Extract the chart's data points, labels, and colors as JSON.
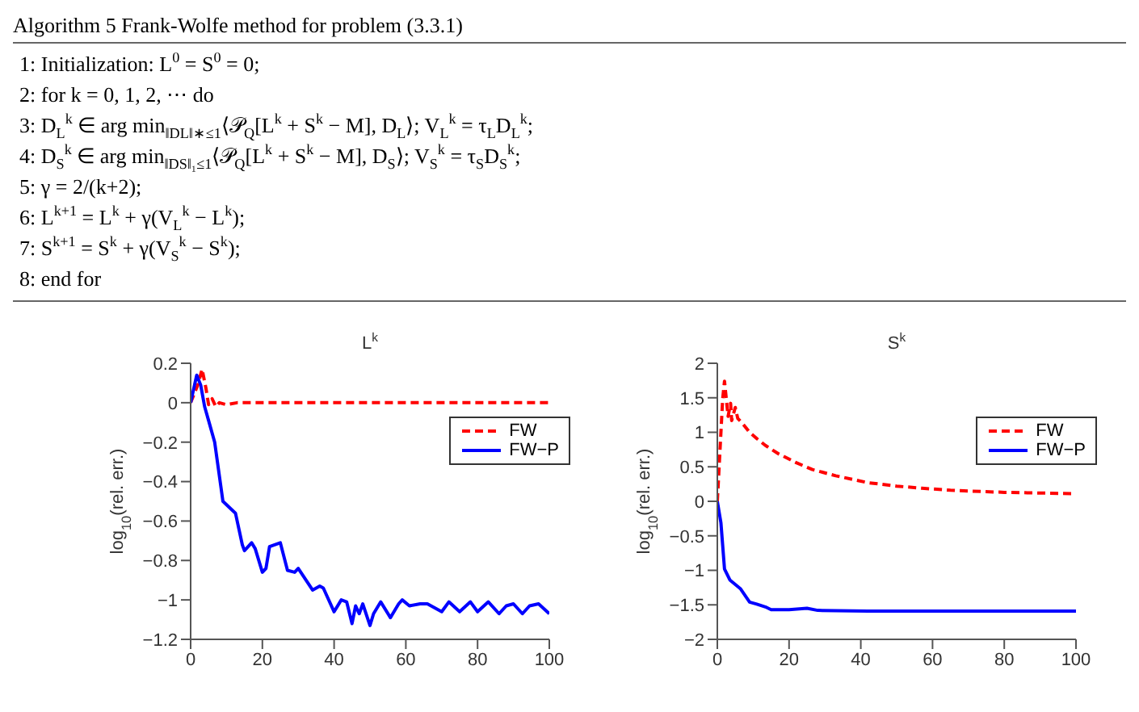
{
  "chart_data": [
    {
      "type": "line",
      "title": "L$^{k}$",
      "ylabel": "log$_{10}$(rel. err.)",
      "xlim": [
        0,
        100
      ],
      "xticks": [
        0,
        20,
        40,
        60,
        80,
        100
      ],
      "ylim": [
        -1.2,
        0.2
      ],
      "yticks": [
        -1.2,
        -1,
        -0.8,
        -0.6,
        -0.4,
        -0.2,
        0,
        0.2
      ],
      "legend": "top right",
      "annotations": [
        "Algorithm 5 Frank-Wolfe method for problem (3.3.1)",
        "1: Initialization: L$^{0}$ = S$^{0}$ = 0;",
        "2: for k = 0, 1, 2, ⋯ do",
        "3: D$_{L}$$^{k}$ ∈ arg min$_{‖DL‖∗≤1}$⟨𝒫$_{Q}$[L$^{k}$ + S$^{k}$ − M], D$_{L}$⟩; V$_{L}$$^{k}$ = τ$_{L}$D$_{L}$$^{k}$;",
        "4: D$_{S}$$^{k}$ ∈ arg min$_{‖DS‖₁≤1}$⟨𝒫$_{Q}$[L$^{k}$ + S$^{k}$ − M], D$_{S}$⟩; V$_{S}$$^{k}$ = τ$_{S}$D$_{S}$$^{k}$;",
        "5: γ = 2/(k+2);",
        "6: L$^{k+1}$ = L$^{k}$ + γ(V$_{L}$$^{k}$ − L$^{k}$);",
        "7: S$^{k+1}$ = S$^{k}$ + γ(V$_{S}$$^{k}$ − S$^{k}$);",
        "8: end for"
      ],
      "series": [
        {
          "name": "FW",
          "color": "#ff0000",
          "line_style": "dashed",
          "x": [
            0,
            2,
            3.2,
            4.3,
            5,
            6,
            7,
            8,
            10,
            13,
            100
          ],
          "values": [
            0,
            0.09,
            0.17,
            0.07,
            -0.01,
            0.02,
            -0.02,
            0,
            -0.01,
            0,
            0
          ]
        },
        {
          "name": "FW−P",
          "color": "#0000ff",
          "line_style": "solid",
          "x": [
            0,
            1.7,
            2.8,
            3.9,
            5,
            6.7,
            9,
            11.3,
            12.5,
            14.4,
            15,
            17,
            18,
            20,
            21,
            22,
            25,
            27,
            29,
            30,
            34,
            36,
            37,
            40,
            42,
            43.5,
            45,
            46,
            47,
            48,
            50,
            51,
            53,
            55.7,
            58,
            59,
            61,
            64,
            66,
            70,
            72,
            75,
            78,
            80,
            83,
            86,
            88,
            90,
            92.5,
            94.5,
            97,
            100
          ],
          "values": [
            0,
            0.14,
            0.09,
            -0.02,
            -0.09,
            -0.2,
            -0.5,
            -0.54,
            -0.56,
            -0.72,
            -0.75,
            -0.71,
            -0.74,
            -0.86,
            -0.84,
            -0.73,
            -0.71,
            -0.85,
            -0.86,
            -0.84,
            -0.95,
            -0.93,
            -0.94,
            -1.06,
            -1,
            -1.01,
            -1.12,
            -1.03,
            -1.07,
            -1.02,
            -1.13,
            -1.07,
            -1.01,
            -1.09,
            -1.02,
            -1,
            -1.03,
            -1.02,
            -1.02,
            -1.06,
            -1.01,
            -1.06,
            -1.01,
            -1.06,
            -1.01,
            -1.07,
            -1.03,
            -1.02,
            -1.07,
            -1.03,
            -1.02,
            -1.07
          ]
        }
      ]
    },
    {
      "type": "line",
      "title": "S$^{k}$",
      "ylabel": "log$_{10}$(rel. err.)",
      "xlim": [
        0,
        100
      ],
      "xticks": [
        0,
        20,
        40,
        60,
        80,
        100
      ],
      "ylim": [
        -2,
        2
      ],
      "yticks": [
        -2,
        -1.5,
        -1,
        -0.5,
        0,
        0.5,
        1,
        1.5,
        2
      ],
      "legend": "top right",
      "series": [
        {
          "name": "FW",
          "color": "#ff0000",
          "line_style": "dashed",
          "x": [
            0,
            1.5,
            2,
            3,
            3.7,
            4,
            5,
            5.7,
            7,
            9,
            11,
            13.4,
            17,
            22,
            26.5,
            33,
            42,
            50,
            57,
            65,
            80,
            100
          ],
          "values": [
            0,
            1.49,
            1.74,
            1.23,
            1.42,
            1.17,
            1.36,
            1.2,
            1.13,
            1,
            0.91,
            0.81,
            0.69,
            0.56,
            0.46,
            0.37,
            0.27,
            0.22,
            0.19,
            0.16,
            0.13,
            0.11
          ]
        },
        {
          "name": "FW−P",
          "color": "#0000ff",
          "line_style": "solid",
          "x": [
            0,
            1,
            2,
            3.5,
            6.5,
            9,
            11,
            13.4,
            15,
            20,
            25,
            28,
            42,
            100
          ],
          "values": [
            0,
            -0.31,
            -0.98,
            -1.14,
            -1.27,
            -1.46,
            -1.49,
            -1.53,
            -1.57,
            -1.57,
            -1.55,
            -1.58,
            -1.59,
            -1.59
          ]
        }
      ]
    }
  ]
}
